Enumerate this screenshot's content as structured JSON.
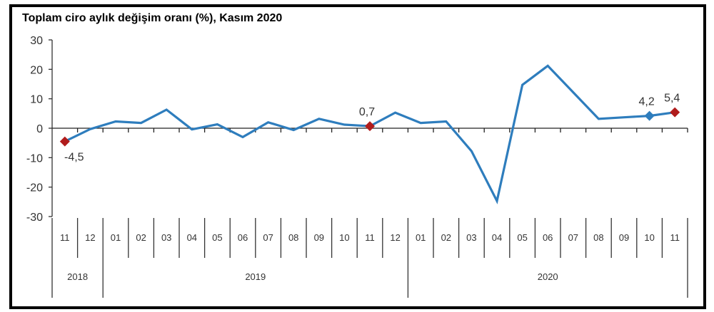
{
  "chart_data": {
    "type": "line",
    "title": "Toplam ciro aylık değişim oranı (%), Kasım 2020",
    "xlabel": "",
    "ylabel": "",
    "ylim": [
      -30,
      30
    ],
    "yticks": [
      "30",
      "20",
      "10",
      "0",
      "-10",
      "-20",
      "-30"
    ],
    "ytick_values": [
      30,
      20,
      10,
      0,
      -10,
      -20,
      -30
    ],
    "grid": false,
    "categories": [
      "11",
      "12",
      "01",
      "02",
      "03",
      "04",
      "05",
      "06",
      "07",
      "08",
      "09",
      "10",
      "11",
      "12",
      "01",
      "02",
      "03",
      "04",
      "05",
      "06",
      "07",
      "08",
      "09",
      "10",
      "11"
    ],
    "years": [
      {
        "label": "2018",
        "span": 2
      },
      {
        "label": "2019",
        "span": 12
      },
      {
        "label": "2020",
        "span": 11
      }
    ],
    "series": [
      {
        "values": [
          -4.5,
          -0.3,
          2.3,
          1.8,
          6.3,
          -0.4,
          1.3,
          -3.0,
          2.0,
          -0.6,
          3.2,
          1.2,
          0.7,
          5.3,
          1.8,
          2.3,
          -7.8,
          -24.7,
          14.7,
          21.2,
          12.2,
          3.2,
          3.7,
          4.2,
          5.4
        ],
        "color": "#2e7dbd"
      }
    ],
    "annotations": [
      {
        "index": 0,
        "label": "-4,5",
        "marker_color": "#b01c1c",
        "position": "below"
      },
      {
        "index": 12,
        "label": "0,7",
        "marker_color": "#b01c1c",
        "position": "above"
      },
      {
        "index": 23,
        "label": "4,2",
        "marker_color": "#2e7dbd",
        "position": "above"
      },
      {
        "index": 24,
        "label": "5,4",
        "marker_color": "#b01c1c",
        "position": "above"
      }
    ]
  }
}
